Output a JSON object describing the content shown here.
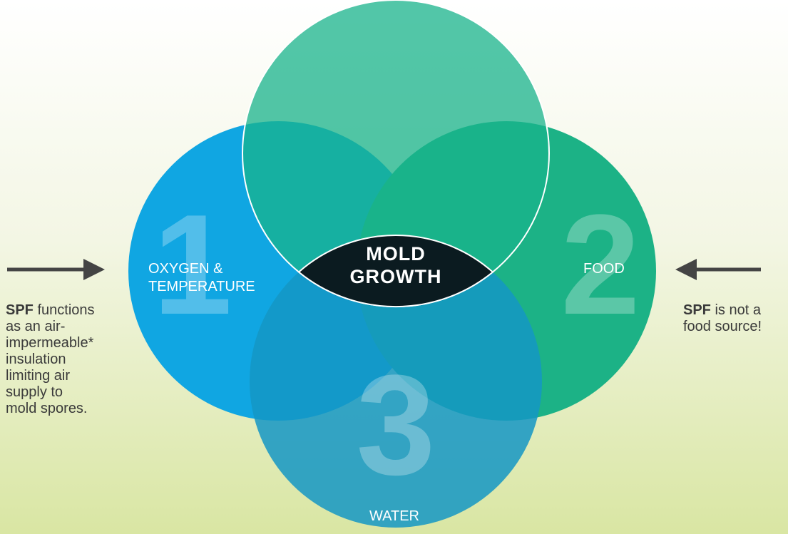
{
  "nodes": [
    {
      "number": "1",
      "label": [
        "OXYGEN &",
        "TEMPERATURE"
      ]
    },
    {
      "number": "2",
      "label": [
        "FOOD"
      ]
    },
    {
      "number": "3",
      "label": [
        "WATER"
      ]
    }
  ],
  "center": [
    "MOLD",
    "GROWTH"
  ],
  "notes": [
    {
      "bold": "SPF",
      "lines": [
        " functions",
        "as an air-",
        "impermeable*",
        "insulation",
        "limiting air",
        "supply to",
        "mold spores."
      ]
    },
    {
      "bold": "SPF",
      "lines": [
        " is not a",
        "food source!"
      ]
    }
  ]
}
